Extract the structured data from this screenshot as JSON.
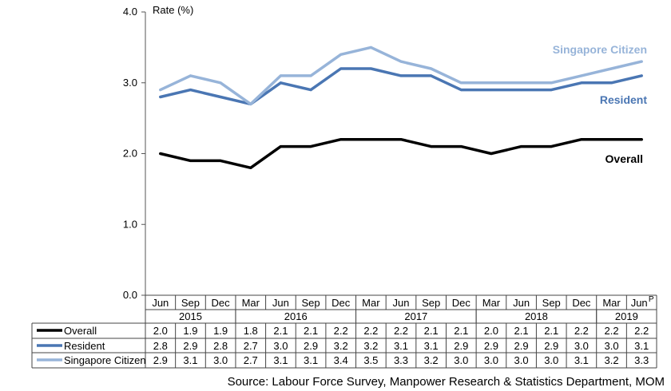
{
  "chart_data": {
    "type": "line",
    "ylabel": "Rate (%)",
    "ylim": [
      0,
      4
    ],
    "yticks": [
      "0.0",
      "1.0",
      "2.0",
      "3.0",
      "4.0"
    ],
    "grid": false,
    "categories": [
      "Jun",
      "Sep",
      "Dec",
      "Mar",
      "Jun",
      "Sep",
      "Dec",
      "Mar",
      "Jun",
      "Sep",
      "Dec",
      "Mar",
      "Jun",
      "Sep",
      "Dec",
      "Mar",
      "Jun"
    ],
    "last_category_superscript": "P",
    "years": [
      {
        "label": "2015",
        "start": 0,
        "end": 2
      },
      {
        "label": "2016",
        "start": 3,
        "end": 6
      },
      {
        "label": "2017",
        "start": 7,
        "end": 10
      },
      {
        "label": "2018",
        "start": 11,
        "end": 14
      },
      {
        "label": "2019",
        "start": 15,
        "end": 16
      }
    ],
    "series": [
      {
        "name": "Overall",
        "color": "#000000",
        "values": [
          2.0,
          1.9,
          1.9,
          1.8,
          2.1,
          2.1,
          2.2,
          2.2,
          2.2,
          2.1,
          2.1,
          2.0,
          2.1,
          2.1,
          2.2,
          2.2,
          2.2
        ],
        "display": [
          "2.0",
          "1.9",
          "1.9",
          "1.8",
          "2.1",
          "2.1",
          "2.2",
          "2.2",
          "2.2",
          "2.1",
          "2.1",
          "2.0",
          "2.1",
          "2.1",
          "2.2",
          "2.2",
          "2.2"
        ]
      },
      {
        "name": "Resident",
        "color": "#4a76b3",
        "values": [
          2.8,
          2.9,
          2.8,
          2.7,
          3.0,
          2.9,
          3.2,
          3.2,
          3.1,
          3.1,
          2.9,
          2.9,
          2.9,
          2.9,
          3.0,
          3.0,
          3.1
        ],
        "display": [
          "2.8",
          "2.9",
          "2.8",
          "2.7",
          "3.0",
          "2.9",
          "3.2",
          "3.2",
          "3.1",
          "3.1",
          "2.9",
          "2.9",
          "2.9",
          "2.9",
          "3.0",
          "3.0",
          "3.1"
        ]
      },
      {
        "name": "Singapore Citizen",
        "color": "#97b4d9",
        "values": [
          2.9,
          3.1,
          3.0,
          2.7,
          3.1,
          3.1,
          3.4,
          3.5,
          3.3,
          3.2,
          3.0,
          3.0,
          3.0,
          3.0,
          3.1,
          3.2,
          3.3
        ],
        "display": [
          "2.9",
          "3.1",
          "3.0",
          "2.7",
          "3.1",
          "3.1",
          "3.4",
          "3.5",
          "3.3",
          "3.2",
          "3.0",
          "3.0",
          "3.0",
          "3.0",
          "3.1",
          "3.2",
          "3.3"
        ]
      }
    ]
  },
  "source": "Source: Labour Force Survey, Manpower Research & Statistics Department, MOM"
}
